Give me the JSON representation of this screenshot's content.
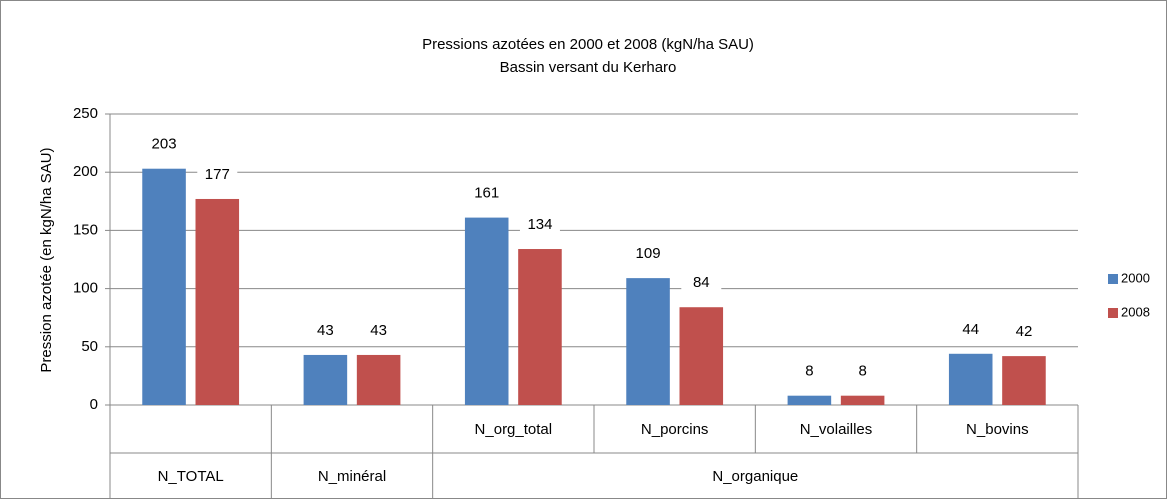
{
  "chart_data": {
    "type": "bar",
    "title": "Pressions azotées en 2000 et 2008 (kgN/ha  SAU)",
    "subtitle": "Bassin versant du Kerharo",
    "y_label": "Pression azotée (en kgN/ha  SAU)",
    "categories": [
      "N_TOTAL",
      "N_minéral",
      "N_org_total",
      "N_porcins",
      "N_volailles",
      "N_bovins"
    ],
    "category_groups": [
      {
        "name": "N_organique",
        "start": 2,
        "span": 4
      }
    ],
    "series": [
      {
        "name": "2000",
        "color": "#4f81bd",
        "values": [
          203,
          43,
          161,
          109,
          8,
          44
        ]
      },
      {
        "name": "2008",
        "color": "#c0504d",
        "values": [
          177,
          43,
          134,
          84,
          8,
          42
        ]
      }
    ],
    "ylim": [
      0,
      250
    ],
    "yticks": [
      0,
      50,
      100,
      150,
      200,
      250
    ],
    "grid": true,
    "legend": "right"
  }
}
